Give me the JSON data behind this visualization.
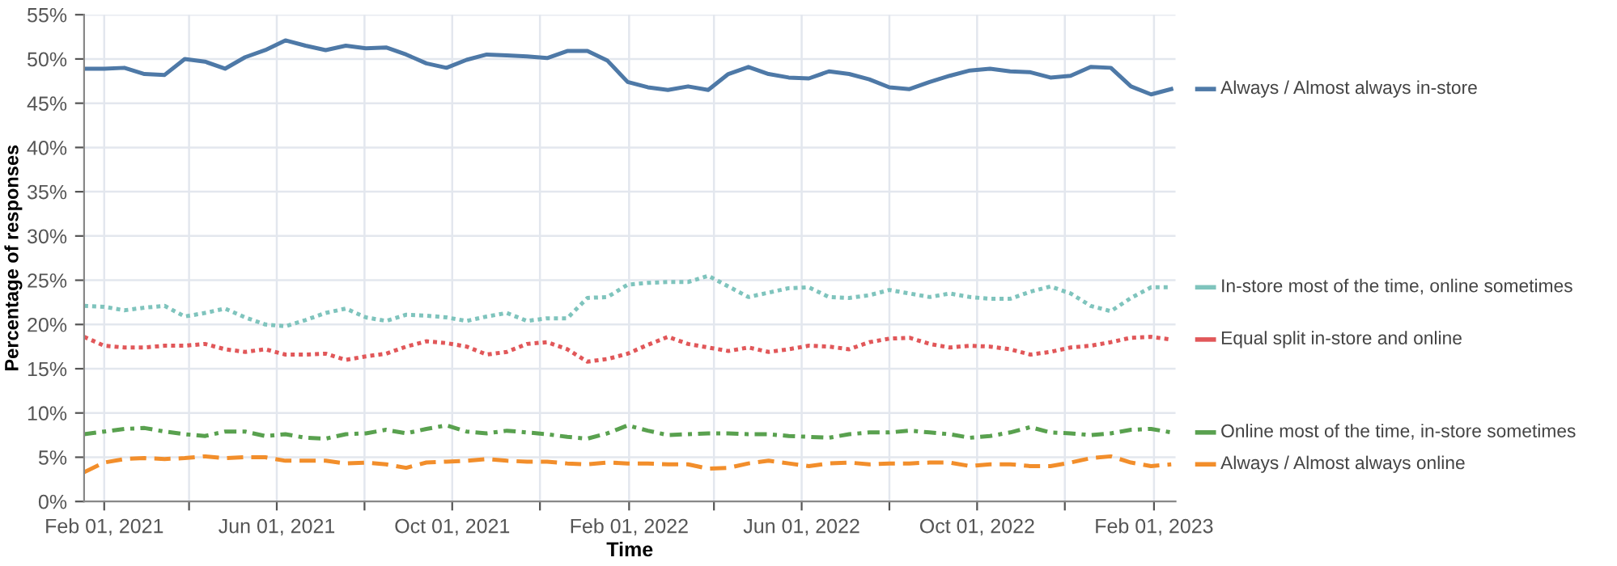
{
  "chart_data": {
    "type": "line",
    "xlabel": "Time",
    "ylabel": "Percentage of responses",
    "x": [
      "2021-01-18",
      "2021-02-01",
      "2021-02-15",
      "2021-03-01",
      "2021-03-15",
      "2021-03-29",
      "2021-04-12",
      "2021-04-26",
      "2021-05-10",
      "2021-05-24",
      "2021-06-07",
      "2021-06-21",
      "2021-07-05",
      "2021-07-19",
      "2021-08-02",
      "2021-08-16",
      "2021-08-30",
      "2021-09-13",
      "2021-09-27",
      "2021-10-11",
      "2021-10-25",
      "2021-11-08",
      "2021-11-22",
      "2021-12-06",
      "2021-12-20",
      "2022-01-03",
      "2022-01-17",
      "2022-01-31",
      "2022-02-14",
      "2022-02-28",
      "2022-03-14",
      "2022-03-28",
      "2022-04-11",
      "2022-04-25",
      "2022-05-09",
      "2022-05-23",
      "2022-06-06",
      "2022-06-20",
      "2022-07-04",
      "2022-07-18",
      "2022-08-01",
      "2022-08-15",
      "2022-08-29",
      "2022-09-12",
      "2022-09-26",
      "2022-10-10",
      "2022-10-24",
      "2022-11-07",
      "2022-11-21",
      "2022-12-05",
      "2022-12-19",
      "2023-01-02",
      "2023-01-16",
      "2023-01-30",
      "2023-02-13"
    ],
    "series": [
      {
        "name": "Always / Almost always in-store",
        "color": "#4e79a7",
        "line_style": "solid",
        "values": [
          48.9,
          48.9,
          49.0,
          48.3,
          48.2,
          50.0,
          49.7,
          48.9,
          50.2,
          51.0,
          52.1,
          51.5,
          51.0,
          51.5,
          51.2,
          51.3,
          50.5,
          49.5,
          49.0,
          49.9,
          50.5,
          50.4,
          50.3,
          50.1,
          50.9,
          50.9,
          49.8,
          47.4,
          46.8,
          46.5,
          46.9,
          46.5,
          48.3,
          49.1,
          48.3,
          47.9,
          47.8,
          48.6,
          48.3,
          47.7,
          46.8,
          46.6,
          47.4,
          48.1,
          48.7,
          48.9,
          48.6,
          48.5,
          47.9,
          48.1,
          49.1,
          49.0,
          46.9,
          46.0,
          46.6
        ]
      },
      {
        "name": "In-store most of the time, online sometimes",
        "color": "#7fc4bd",
        "line_style": "dotted",
        "values": [
          22.1,
          22.0,
          21.6,
          21.9,
          22.1,
          20.9,
          21.3,
          21.8,
          20.8,
          20.0,
          19.8,
          20.5,
          21.3,
          21.8,
          20.8,
          20.4,
          21.1,
          21.0,
          20.8,
          20.4,
          20.9,
          21.3,
          20.4,
          20.7,
          20.7,
          23.0,
          23.1,
          24.5,
          24.7,
          24.8,
          24.8,
          25.5,
          24.3,
          23.1,
          23.6,
          24.1,
          24.2,
          23.1,
          23.0,
          23.3,
          23.9,
          23.5,
          23.1,
          23.5,
          23.1,
          22.9,
          22.9,
          23.7,
          24.3,
          23.5,
          22.1,
          21.5,
          23.0,
          24.2,
          24.2
        ]
      },
      {
        "name": "Equal split in-store and online",
        "color": "#e15759",
        "line_style": "dotted",
        "values": [
          18.6,
          17.6,
          17.4,
          17.4,
          17.6,
          17.6,
          17.8,
          17.2,
          16.9,
          17.2,
          16.6,
          16.6,
          16.7,
          16.0,
          16.4,
          16.7,
          17.5,
          18.1,
          17.9,
          17.5,
          16.6,
          16.9,
          17.8,
          18.0,
          17.2,
          15.8,
          16.1,
          16.7,
          17.7,
          18.6,
          17.8,
          17.4,
          17.0,
          17.4,
          16.9,
          17.2,
          17.6,
          17.5,
          17.2,
          18.0,
          18.4,
          18.5,
          17.8,
          17.4,
          17.6,
          17.5,
          17.2,
          16.6,
          16.9,
          17.4,
          17.6,
          18.0,
          18.5,
          18.6,
          18.3
        ]
      },
      {
        "name": "Online most of the time, in-store sometimes",
        "color": "#59a14f",
        "line_style": "dashdot",
        "values": [
          7.6,
          7.9,
          8.2,
          8.3,
          7.9,
          7.6,
          7.4,
          7.9,
          7.9,
          7.4,
          7.6,
          7.2,
          7.1,
          7.6,
          7.7,
          8.1,
          7.7,
          8.2,
          8.6,
          7.9,
          7.7,
          8.0,
          7.8,
          7.6,
          7.3,
          7.1,
          7.7,
          8.6,
          8.0,
          7.5,
          7.6,
          7.7,
          7.7,
          7.6,
          7.6,
          7.4,
          7.3,
          7.2,
          7.6,
          7.8,
          7.8,
          8.0,
          7.8,
          7.6,
          7.2,
          7.4,
          7.8,
          8.4,
          7.8,
          7.7,
          7.5,
          7.7,
          8.1,
          8.2,
          7.8
        ]
      },
      {
        "name": "Always / Almost always online",
        "color": "#f28e2b",
        "line_style": "dashed",
        "values": [
          3.3,
          4.4,
          4.8,
          4.9,
          4.8,
          4.9,
          5.1,
          4.9,
          5.0,
          5.0,
          4.6,
          4.6,
          4.6,
          4.3,
          4.4,
          4.2,
          3.8,
          4.4,
          4.5,
          4.6,
          4.8,
          4.6,
          4.5,
          4.5,
          4.3,
          4.2,
          4.4,
          4.3,
          4.3,
          4.2,
          4.2,
          3.7,
          3.8,
          4.3,
          4.6,
          4.3,
          4.0,
          4.3,
          4.4,
          4.2,
          4.3,
          4.3,
          4.4,
          4.4,
          4.0,
          4.2,
          4.2,
          4.0,
          4.0,
          4.4,
          4.9,
          5.1,
          4.4,
          4.0,
          4.2
        ]
      }
    ],
    "xlim": [
      "2021-01-18",
      "2023-02-16"
    ],
    "xticks": [
      {
        "value": "2021-02-01",
        "label": "Feb 01, 2021"
      },
      {
        "value": "2021-04-01",
        "label": null
      },
      {
        "value": "2021-06-01",
        "label": "Jun 01, 2021"
      },
      {
        "value": "2021-08-01",
        "label": null
      },
      {
        "value": "2021-10-01",
        "label": "Oct 01, 2021"
      },
      {
        "value": "2021-12-01",
        "label": null
      },
      {
        "value": "2022-02-01",
        "label": "Feb 01, 2022"
      },
      {
        "value": "2022-04-01",
        "label": null
      },
      {
        "value": "2022-06-01",
        "label": "Jun 01, 2022"
      },
      {
        "value": "2022-08-01",
        "label": null
      },
      {
        "value": "2022-10-01",
        "label": "Oct 01, 2022"
      },
      {
        "value": "2022-12-01",
        "label": null
      },
      {
        "value": "2023-02-01",
        "label": "Feb 01, 2023"
      }
    ],
    "ylim": [
      0,
      55
    ],
    "yticks": [
      {
        "value": 0,
        "label": "0%"
      },
      {
        "value": 5,
        "label": "5%"
      },
      {
        "value": 10,
        "label": "10%"
      },
      {
        "value": 15,
        "label": "15%"
      },
      {
        "value": 20,
        "label": "20%"
      },
      {
        "value": 25,
        "label": "25%"
      },
      {
        "value": 30,
        "label": "30%"
      },
      {
        "value": 35,
        "label": "35%"
      },
      {
        "value": 40,
        "label": "40%"
      },
      {
        "value": 45,
        "label": "45%"
      },
      {
        "value": 50,
        "label": "50%"
      },
      {
        "value": 55,
        "label": "55%"
      }
    ],
    "grid": true,
    "legend": "right",
    "marker": "none"
  }
}
